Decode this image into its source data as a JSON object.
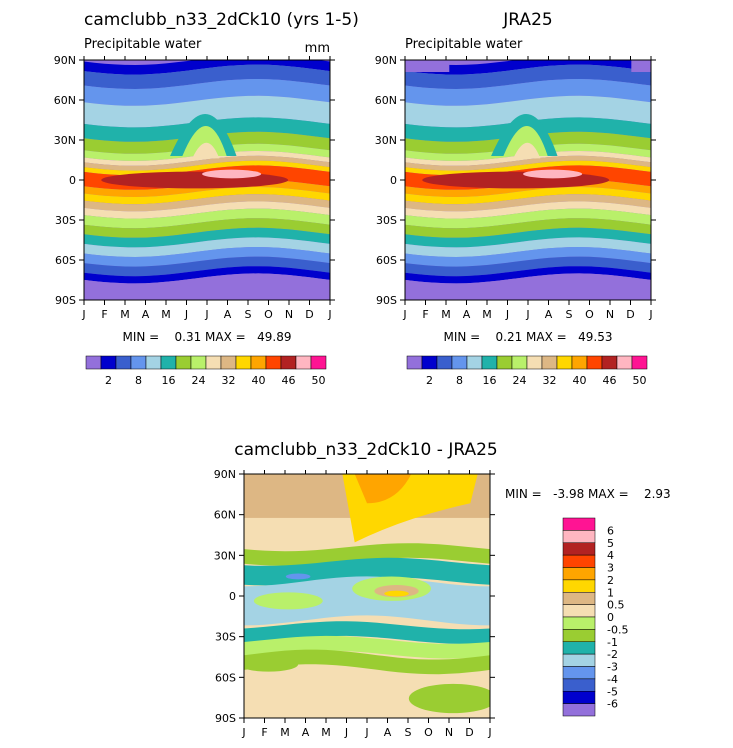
{
  "colorbar_colors": [
    "#9370db",
    "#0000cd",
    "#3a5fcd",
    "#6495ed",
    "#a4d3e4",
    "#20b2aa",
    "#9acd32",
    "#b9f06a",
    "#f5deb3",
    "#ddb784",
    "#ffd700",
    "#ffa500",
    "#ff4500",
    "#b22222",
    "#ffb6c1",
    "#ff1493"
  ],
  "diff_colors": [
    "#9370db",
    "#0000cd",
    "#3a5fcd",
    "#6495ed",
    "#a4d3e4",
    "#20b2aa",
    "#9acd32",
    "#b9f06a",
    "#f5deb3",
    "#ddb784",
    "#ffd700",
    "#ffa500",
    "#ff4500",
    "#b22222",
    "#ffb6c1",
    "#ff1493"
  ],
  "chart_data": [
    {
      "type": "heatmap",
      "id": "model",
      "title": "camclubb_n33_2dCk10 (yrs 1-5)",
      "left_label": "Precipitable water",
      "units": "mm",
      "xlabels": [
        "J",
        "F",
        "M",
        "A",
        "M",
        "J",
        "J",
        "A",
        "S",
        "O",
        "N",
        "D",
        "J"
      ],
      "ylabels": [
        "90N",
        "60N",
        "30N",
        "0",
        "30S",
        "60S",
        "90S"
      ],
      "min_text": "MIN =    0.31 MAX =   49.89",
      "min": 0.31,
      "max": 49.89
    },
    {
      "type": "heatmap",
      "id": "obs",
      "title": "JRA25",
      "left_label": "Precipitable water",
      "xlabels": [
        "J",
        "F",
        "M",
        "A",
        "M",
        "J",
        "J",
        "A",
        "S",
        "O",
        "N",
        "D",
        "J"
      ],
      "ylabels": [
        "90N",
        "60N",
        "30N",
        "0",
        "30S",
        "60S",
        "90S"
      ],
      "min_text": "MIN =    0.21 MAX =   49.53",
      "min": 0.21,
      "max": 49.53
    },
    {
      "type": "heatmap",
      "id": "diff",
      "title": "camclubb_n33_2dCk10 - JRA25",
      "xlabels": [
        "J",
        "F",
        "M",
        "A",
        "M",
        "J",
        "J",
        "A",
        "S",
        "O",
        "N",
        "D",
        "J"
      ],
      "ylabels": [
        "90N",
        "60N",
        "30N",
        "0",
        "30S",
        "60S",
        "90S"
      ],
      "min_text": "MIN =   -3.98 MAX =    2.93",
      "min": -3.98,
      "max": 2.93
    }
  ],
  "top_colorbar_labels": [
    "2",
    "8",
    "16",
    "24",
    "32",
    "40",
    "46",
    "50"
  ],
  "diff_colorbar_labels": [
    "6",
    "5",
    "4",
    "3",
    "2",
    "1",
    "0.5",
    "0",
    "-0.5",
    "-1",
    "-2",
    "-3",
    "-4",
    "-5",
    "-6"
  ]
}
